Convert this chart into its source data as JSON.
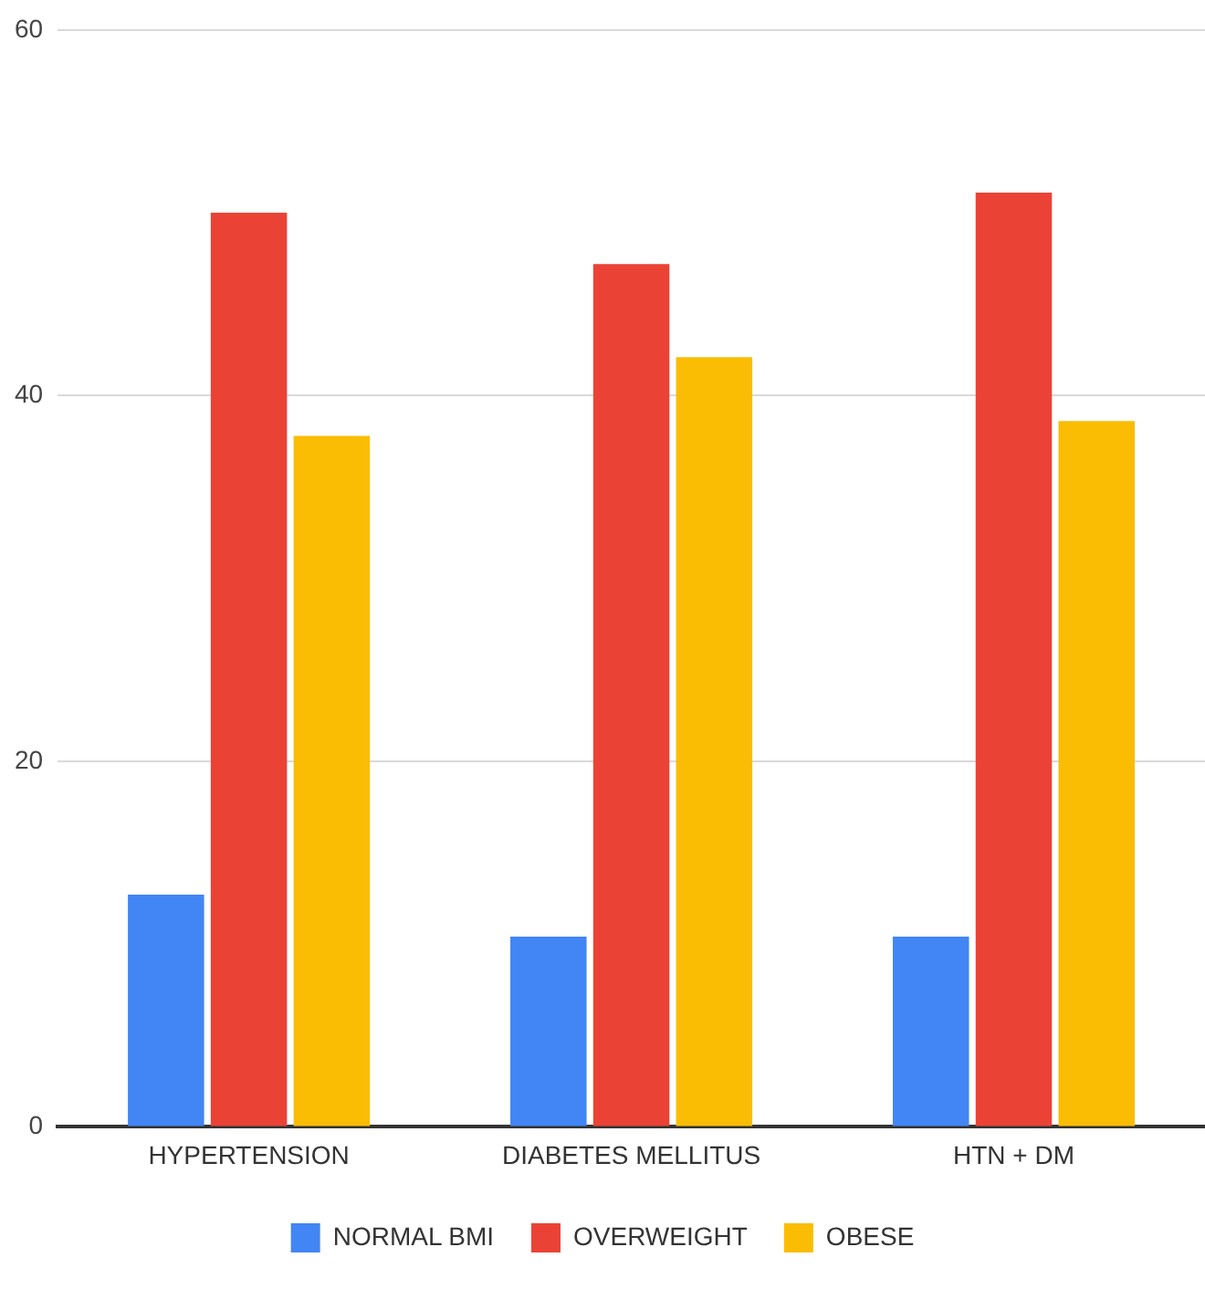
{
  "chart_data": {
    "type": "bar",
    "categories": [
      "HYPERTENSION",
      "DIABETES MELLITUS",
      "HTN + DM"
    ],
    "series": [
      {
        "name": "NORMAL BMI",
        "color": "#4285f4",
        "values": [
          12.7,
          10.4,
          10.4
        ]
      },
      {
        "name": "OVERWEIGHT",
        "color": "#ea4335",
        "values": [
          50,
          47.2,
          51.1
        ]
      },
      {
        "name": "OBESE",
        "color": "#fbbc04",
        "values": [
          37.8,
          42.1,
          38.6
        ]
      }
    ],
    "ylim": [
      0,
      60
    ],
    "yticks": [
      0,
      20,
      40,
      60
    ],
    "grid": "y",
    "legend": "bottom"
  }
}
